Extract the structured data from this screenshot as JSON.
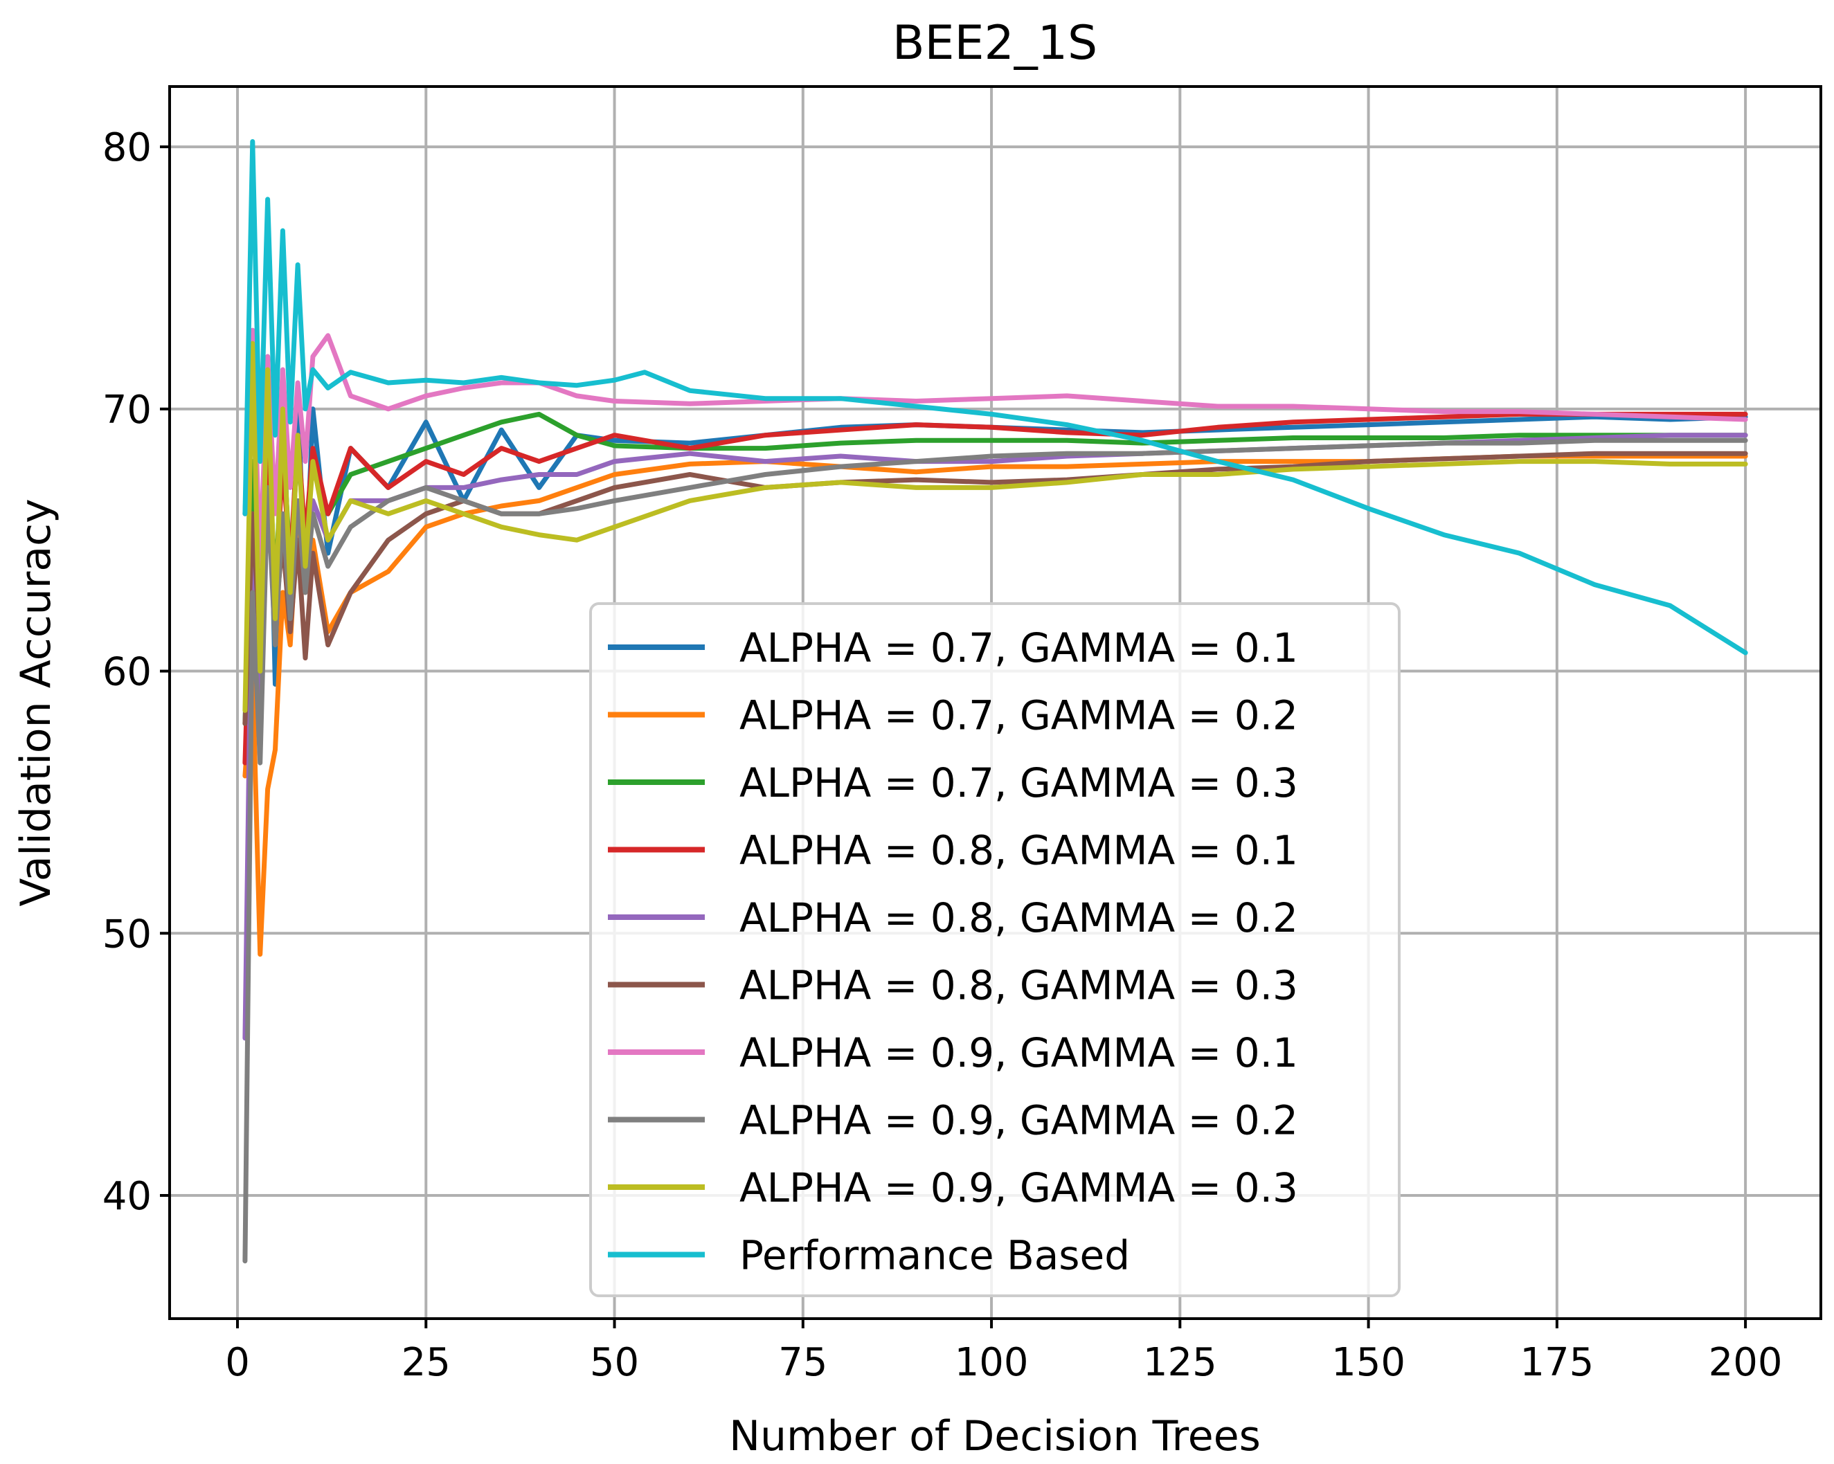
{
  "chart_data": {
    "type": "line",
    "title": "BEE2_1S",
    "xlabel": "Number of Decision Trees",
    "ylabel": "Validation Accuracy",
    "xlim": [
      -9,
      210
    ],
    "ylim": [
      35.3,
      82.3
    ],
    "xticks": [
      0,
      25,
      50,
      75,
      100,
      125,
      150,
      175,
      200
    ],
    "yticks": [
      40,
      50,
      60,
      70,
      80
    ],
    "grid": true,
    "legend_position": "lower-center",
    "series": [
      {
        "name": "ALPHA = 0.7, GAMMA = 0.1",
        "color": "#1f77b4",
        "x": [
          1,
          2,
          3,
          4,
          5,
          6,
          7,
          8,
          9,
          10,
          12,
          15,
          20,
          25,
          30,
          35,
          40,
          45,
          50,
          60,
          70,
          80,
          90,
          100,
          110,
          120,
          130,
          140,
          150,
          160,
          170,
          180,
          190,
          200
        ],
        "y": [
          66.0,
          73.0,
          60.0,
          72.0,
          59.5,
          71.0,
          62.0,
          70.5,
          63.0,
          70.0,
          64.5,
          68.5,
          67.0,
          69.5,
          66.5,
          69.2,
          67.0,
          69.0,
          68.8,
          68.7,
          69.0,
          69.3,
          69.4,
          69.3,
          69.2,
          69.1,
          69.2,
          69.3,
          69.4,
          69.5,
          69.6,
          69.7,
          69.6,
          69.7
        ]
      },
      {
        "name": "ALPHA = 0.7, GAMMA = 0.2",
        "color": "#ff7f0e",
        "x": [
          1,
          2,
          3,
          4,
          5,
          6,
          7,
          8,
          9,
          10,
          12,
          15,
          20,
          25,
          30,
          35,
          40,
          45,
          50,
          60,
          70,
          80,
          90,
          100,
          110,
          120,
          130,
          140,
          150,
          160,
          170,
          180,
          190,
          200
        ],
        "y": [
          56.0,
          60.0,
          49.2,
          55.5,
          57.0,
          63.0,
          61.0,
          66.0,
          63.0,
          65.0,
          61.5,
          63.0,
          63.8,
          65.5,
          66.0,
          66.3,
          66.5,
          67.0,
          67.5,
          67.9,
          68.0,
          67.8,
          67.6,
          67.8,
          67.8,
          67.9,
          68.0,
          68.0,
          68.0,
          68.1,
          68.2,
          68.2,
          68.2,
          68.2
        ]
      },
      {
        "name": "ALPHA = 0.7, GAMMA = 0.3",
        "color": "#2ca02c",
        "x": [
          1,
          2,
          3,
          4,
          5,
          6,
          7,
          8,
          9,
          10,
          12,
          15,
          20,
          25,
          30,
          35,
          40,
          45,
          50,
          60,
          70,
          80,
          90,
          100,
          110,
          120,
          130,
          140,
          150,
          160,
          170,
          180,
          190,
          200
        ],
        "y": [
          58.0,
          68.0,
          62.0,
          69.5,
          63.0,
          69.0,
          64.0,
          68.5,
          65.0,
          68.0,
          66.0,
          67.5,
          68.0,
          68.5,
          69.0,
          69.5,
          69.8,
          69.0,
          68.6,
          68.5,
          68.5,
          68.7,
          68.8,
          68.8,
          68.8,
          68.7,
          68.8,
          68.9,
          68.9,
          68.9,
          69.0,
          69.0,
          69.0,
          69.0
        ]
      },
      {
        "name": "ALPHA = 0.8, GAMMA = 0.1",
        "color": "#d62728",
        "x": [
          1,
          2,
          3,
          4,
          5,
          6,
          7,
          8,
          9,
          10,
          12,
          15,
          20,
          25,
          30,
          35,
          40,
          45,
          50,
          60,
          70,
          80,
          90,
          100,
          110,
          120,
          130,
          140,
          150,
          160,
          170,
          180,
          190,
          200
        ],
        "y": [
          56.5,
          66.0,
          62.0,
          68.5,
          63.0,
          68.0,
          64.0,
          69.0,
          65.0,
          68.5,
          66.0,
          68.5,
          67.0,
          68.0,
          67.5,
          68.5,
          68.0,
          68.5,
          69.0,
          68.5,
          69.0,
          69.2,
          69.4,
          69.3,
          69.1,
          69.0,
          69.3,
          69.5,
          69.6,
          69.7,
          69.8,
          69.8,
          69.8,
          69.8
        ]
      },
      {
        "name": "ALPHA = 0.8, GAMMA = 0.2",
        "color": "#9467bd",
        "x": [
          1,
          2,
          3,
          4,
          5,
          6,
          7,
          8,
          9,
          10,
          12,
          15,
          20,
          25,
          30,
          35,
          40,
          45,
          50,
          60,
          70,
          80,
          90,
          100,
          110,
          120,
          130,
          140,
          150,
          160,
          170,
          180,
          190,
          200
        ],
        "y": [
          46.0,
          66.0,
          58.0,
          67.0,
          62.0,
          66.0,
          63.0,
          66.5,
          64.0,
          66.5,
          65.0,
          66.5,
          66.5,
          67.0,
          67.0,
          67.3,
          67.5,
          67.5,
          68.0,
          68.3,
          68.0,
          68.2,
          68.0,
          68.0,
          68.2,
          68.3,
          68.4,
          68.5,
          68.6,
          68.7,
          68.8,
          68.9,
          69.0,
          69.0
        ]
      },
      {
        "name": "ALPHA = 0.8, GAMMA = 0.3",
        "color": "#8c564b",
        "x": [
          1,
          2,
          3,
          4,
          5,
          6,
          7,
          8,
          9,
          10,
          12,
          15,
          20,
          25,
          30,
          35,
          40,
          45,
          50,
          60,
          70,
          80,
          90,
          100,
          110,
          120,
          130,
          140,
          150,
          160,
          170,
          180,
          190,
          200
        ],
        "y": [
          58.0,
          66.0,
          61.0,
          66.5,
          62.0,
          65.0,
          61.5,
          65.0,
          60.5,
          64.5,
          61.0,
          63.0,
          65.0,
          66.0,
          66.5,
          66.0,
          66.0,
          66.5,
          67.0,
          67.5,
          67.0,
          67.2,
          67.3,
          67.2,
          67.3,
          67.5,
          67.7,
          67.8,
          68.0,
          68.1,
          68.2,
          68.3,
          68.3,
          68.3
        ]
      },
      {
        "name": "ALPHA = 0.9, GAMMA = 0.1",
        "color": "#e377c2",
        "x": [
          1,
          2,
          3,
          4,
          5,
          6,
          7,
          8,
          9,
          10,
          12,
          15,
          20,
          25,
          30,
          35,
          40,
          45,
          50,
          60,
          70,
          80,
          90,
          100,
          110,
          120,
          130,
          140,
          150,
          160,
          170,
          180,
          190,
          200
        ],
        "y": [
          66.0,
          73.0,
          64.0,
          72.0,
          66.0,
          71.5,
          67.0,
          71.0,
          68.0,
          72.0,
          72.8,
          70.5,
          70.0,
          70.5,
          70.8,
          71.0,
          71.0,
          70.5,
          70.3,
          70.2,
          70.3,
          70.4,
          70.3,
          70.4,
          70.5,
          70.3,
          70.1,
          70.1,
          70.0,
          69.9,
          69.9,
          69.8,
          69.7,
          69.6
        ]
      },
      {
        "name": "ALPHA = 0.9, GAMMA = 0.2",
        "color": "#7f7f7f",
        "x": [
          1,
          2,
          3,
          4,
          5,
          6,
          7,
          8,
          9,
          10,
          12,
          15,
          20,
          25,
          30,
          35,
          40,
          45,
          50,
          60,
          70,
          80,
          90,
          100,
          110,
          120,
          130,
          140,
          150,
          160,
          170,
          180,
          190,
          200
        ],
        "y": [
          37.5,
          63.0,
          56.5,
          67.0,
          61.0,
          66.0,
          62.0,
          66.5,
          63.0,
          66.0,
          64.0,
          65.5,
          66.5,
          67.0,
          66.5,
          66.0,
          66.0,
          66.2,
          66.5,
          67.0,
          67.5,
          67.8,
          68.0,
          68.2,
          68.3,
          68.3,
          68.4,
          68.5,
          68.6,
          68.7,
          68.7,
          68.8,
          68.8,
          68.8
        ]
      },
      {
        "name": "ALPHA = 0.9, GAMMA = 0.3",
        "color": "#bcbd22",
        "x": [
          1,
          2,
          3,
          4,
          5,
          6,
          7,
          8,
          9,
          10,
          12,
          15,
          20,
          25,
          30,
          35,
          40,
          45,
          50,
          60,
          70,
          80,
          90,
          100,
          110,
          120,
          130,
          140,
          150,
          160,
          170,
          180,
          190,
          200
        ],
        "y": [
          58.5,
          72.5,
          60.0,
          71.5,
          62.0,
          70.0,
          63.0,
          69.0,
          64.0,
          68.0,
          65.0,
          66.5,
          66.0,
          66.5,
          66.0,
          65.5,
          65.2,
          65.0,
          65.5,
          66.5,
          67.0,
          67.2,
          67.0,
          67.0,
          67.2,
          67.5,
          67.5,
          67.7,
          67.8,
          67.9,
          68.0,
          68.0,
          67.9,
          67.9
        ]
      },
      {
        "name": "Performance Based",
        "color": "#17becf",
        "x": [
          1,
          2,
          3,
          4,
          5,
          6,
          7,
          8,
          9,
          10,
          12,
          15,
          20,
          25,
          30,
          35,
          40,
          45,
          50,
          54,
          60,
          70,
          80,
          90,
          100,
          110,
          120,
          130,
          140,
          150,
          160,
          170,
          180,
          190,
          200
        ],
        "y": [
          66.0,
          80.2,
          68.0,
          78.0,
          69.0,
          76.8,
          69.5,
          75.5,
          70.0,
          71.5,
          70.8,
          71.4,
          71.0,
          71.1,
          71.0,
          71.2,
          71.0,
          70.9,
          71.1,
          71.4,
          70.7,
          70.4,
          70.4,
          70.1,
          69.8,
          69.4,
          68.8,
          68.0,
          67.3,
          66.2,
          65.2,
          64.5,
          63.3,
          62.5,
          60.7
        ]
      }
    ]
  }
}
